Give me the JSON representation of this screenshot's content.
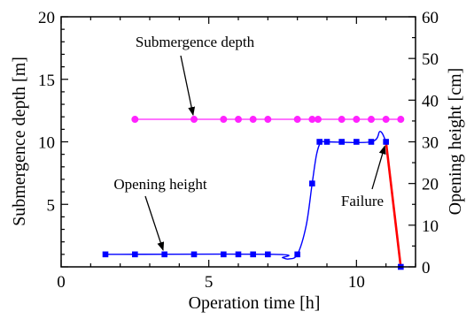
{
  "chart_data": {
    "type": "line",
    "xlabel": "Operation time [h]",
    "ylabel_left": "Submergence depth [m]",
    "ylabel_right": "Opening height [cm]",
    "xlim": [
      0,
      12
    ],
    "ylim_left": [
      0,
      20
    ],
    "ylim_right": [
      0,
      60
    ],
    "x_ticks": [
      0,
      5,
      10
    ],
    "y_left_ticks": [
      5,
      10,
      15,
      20
    ],
    "y_right_ticks": [
      0,
      10,
      20,
      30,
      40,
      50,
      60
    ],
    "grid": false,
    "series": [
      {
        "name": "Submergence depth",
        "axis": "left",
        "color": "#ff22ff",
        "marker": "circle",
        "x": [
          2.5,
          4.5,
          5.5,
          6.0,
          6.5,
          7.0,
          8.0,
          8.5,
          8.7,
          9.5,
          10.0,
          10.5,
          11.0,
          11.5
        ],
        "y": [
          11.8,
          11.8,
          11.8,
          11.8,
          11.8,
          11.8,
          11.8,
          11.8,
          11.8,
          11.8,
          11.8,
          11.8,
          11.8,
          11.8
        ]
      },
      {
        "name": "Opening height",
        "axis": "right",
        "color": "#0000ff",
        "marker": "square",
        "x": [
          1.5,
          2.5,
          3.5,
          4.5,
          5.5,
          6.0,
          6.5,
          7.0,
          8.0,
          8.5,
          8.75,
          9.0,
          9.5,
          10.0,
          10.5,
          11.0,
          11.5
        ],
        "y": [
          3,
          3,
          3,
          3,
          3,
          3,
          3,
          3,
          3,
          20,
          30,
          30,
          30,
          30,
          30,
          30,
          0
        ]
      }
    ],
    "fitted_curve": {
      "color": "#0000ff",
      "x": [
        1.5,
        7.2,
        7.5,
        7.7,
        8.0,
        8.3,
        8.5,
        8.65,
        8.8,
        9.0,
        10.5,
        10.8,
        11.0
      ],
      "y": [
        3,
        3,
        2.2,
        1.9,
        3,
        10,
        20,
        27,
        30,
        30,
        30,
        32.5,
        30
      ]
    },
    "failure_segment": {
      "color": "#ff0000",
      "x": [
        11.0,
        11.5
      ],
      "y": [
        30,
        0
      ]
    },
    "annotations": [
      {
        "text": "Submergence depth",
        "arrow_to": [
          4.5,
          11.8
        ],
        "axis": "left"
      },
      {
        "text": "Opening height",
        "arrow_to": [
          3.5,
          3
        ],
        "axis": "right"
      },
      {
        "text": "Failure",
        "arrow_to": [
          11.0,
          30
        ],
        "axis": "right"
      }
    ]
  }
}
